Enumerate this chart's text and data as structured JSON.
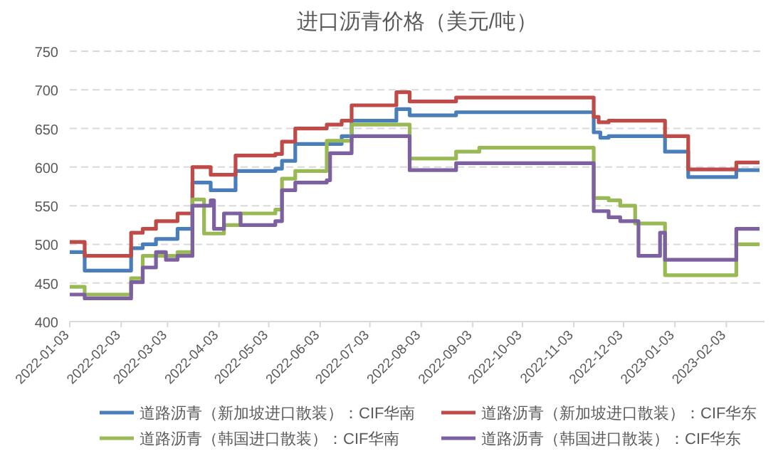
{
  "chart_data": {
    "type": "step",
    "title": "进口沥青价格（美元/吨）",
    "xlim": [
      "2022-01-03",
      "2023-02-26"
    ],
    "xticks": [
      "2022-01-03",
      "2022-02-03",
      "2022-03-03",
      "2022-04-03",
      "2022-05-03",
      "2022-06-03",
      "2022-07-03",
      "2022-08-03",
      "2022-09-03",
      "2022-10-03",
      "2022-11-03",
      "2022-12-03",
      "2023-01-03",
      "2023-02-03"
    ],
    "ylim": [
      400,
      750
    ],
    "yticks": [
      400,
      450,
      500,
      550,
      600,
      650,
      700,
      750
    ],
    "grid": "y",
    "legend": "bottom",
    "series": [
      {
        "name": "道路沥青（新加坡进口散装）：CIF华南",
        "color": "#4a7ebb",
        "x": [
          "2022-01-03",
          "2022-01-12",
          "2022-02-09",
          "2022-02-16",
          "2022-02-24",
          "2022-03-09",
          "2022-03-18",
          "2022-03-29",
          "2022-04-13",
          "2022-05-07",
          "2022-05-11",
          "2022-05-19",
          "2022-06-16",
          "2022-06-22",
          "2022-07-19",
          "2022-07-27",
          "2022-08-24",
          "2022-11-12",
          "2022-11-15",
          "2022-11-19",
          "2022-11-24",
          "2022-12-28",
          "2023-01-11",
          "2023-02-09",
          "2023-02-23"
        ],
        "values": [
          490,
          466,
          495,
          500,
          507,
          520,
          580,
          570,
          595,
          598,
          608,
          630,
          640,
          660,
          675,
          667,
          671,
          671,
          645,
          638,
          640,
          620,
          587,
          596,
          596
        ]
      },
      {
        "name": "道路沥青（新加坡进口散装）：CIF华东",
        "color": "#be4b48",
        "x": [
          "2022-01-03",
          "2022-01-12",
          "2022-02-09",
          "2022-02-16",
          "2022-02-24",
          "2022-03-09",
          "2022-03-18",
          "2022-03-29",
          "2022-04-13",
          "2022-05-07",
          "2022-05-11",
          "2022-05-19",
          "2022-06-07",
          "2022-06-16",
          "2022-06-22",
          "2022-07-19",
          "2022-07-27",
          "2022-08-24",
          "2022-11-12",
          "2022-11-15",
          "2022-11-18",
          "2022-11-24",
          "2022-12-28",
          "2023-01-11",
          "2023-02-09",
          "2023-02-23"
        ],
        "values": [
          503,
          485,
          515,
          520,
          530,
          540,
          600,
          590,
          615,
          617,
          633,
          650,
          655,
          660,
          680,
          697,
          685,
          690,
          690,
          665,
          658,
          660,
          640,
          597,
          606,
          606
        ]
      },
      {
        "name": "道路沥青（韩国进口散装）：CIF华南",
        "color": "#98b954",
        "x": [
          "2022-01-03",
          "2022-01-12",
          "2022-02-09",
          "2022-02-16",
          "2022-03-09",
          "2022-03-18",
          "2022-03-25",
          "2022-04-06",
          "2022-04-16",
          "2022-05-07",
          "2022-05-11",
          "2022-05-19",
          "2022-06-07",
          "2022-06-22",
          "2022-07-27",
          "2022-08-24",
          "2022-09-07",
          "2022-11-12",
          "2022-11-15",
          "2022-11-24",
          "2022-12-01",
          "2022-12-10",
          "2022-12-28",
          "2023-02-09",
          "2023-02-23"
        ],
        "values": [
          445,
          435,
          456,
          485,
          490,
          558,
          514,
          525,
          540,
          545,
          585,
          595,
          634,
          655,
          611,
          620,
          625,
          625,
          560,
          557,
          550,
          527,
          460,
          500,
          500
        ]
      },
      {
        "name": "道路沥青（韩国进口散装）：CIF华东",
        "color": "#7d60a0",
        "x": [
          "2022-01-03",
          "2022-01-12",
          "2022-02-09",
          "2022-02-16",
          "2022-02-24",
          "2022-03-02",
          "2022-03-09",
          "2022-03-18",
          "2022-03-29",
          "2022-03-31",
          "2022-04-06",
          "2022-04-16",
          "2022-05-07",
          "2022-05-11",
          "2022-05-19",
          "2022-06-07",
          "2022-06-09",
          "2022-06-22",
          "2022-07-27",
          "2022-08-24",
          "2022-11-12",
          "2022-11-15",
          "2022-11-24",
          "2022-12-01",
          "2022-12-12",
          "2022-12-24",
          "2022-12-25",
          "2022-12-28",
          "2023-02-09",
          "2023-02-23"
        ],
        "values": [
          435,
          430,
          451,
          470,
          490,
          480,
          485,
          550,
          557,
          520,
          540,
          525,
          530,
          570,
          580,
          583,
          618,
          640,
          596,
          605,
          605,
          543,
          535,
          530,
          485,
          485,
          515,
          480,
          520,
          520
        ]
      }
    ]
  }
}
